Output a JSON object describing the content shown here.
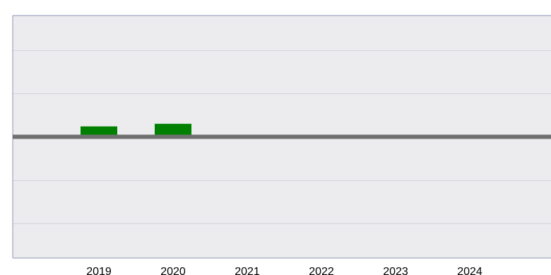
{
  "chart_data": {
    "type": "bar",
    "categories": [
      "2019",
      "2020",
      "2021",
      "2022",
      "2023",
      "2024"
    ],
    "series": [
      {
        "values": [
          0.6,
          0.75,
          null,
          null,
          null,
          null
        ]
      }
    ],
    "ylim": [
      -7,
      7
    ],
    "baseline": 0,
    "grid": true,
    "legend": "none",
    "colors": {
      "plot_background": "#ececee",
      "bar": "#008000",
      "baseline": "#707070",
      "grid": "#cfd3dc",
      "axis": "#8f95b4"
    }
  }
}
